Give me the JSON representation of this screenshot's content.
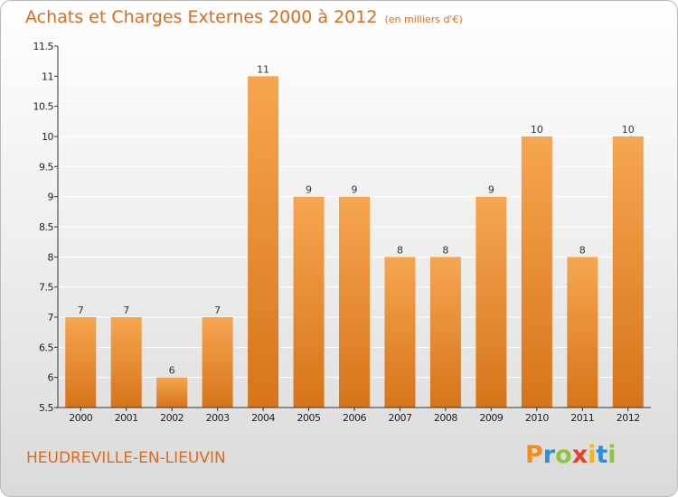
{
  "title": "Achats et Charges Externes 2000 à 2012",
  "unit_note": "(en milliers d'€)",
  "commune": "HEUDREVILLE-EN-LIEUVIN",
  "logo_text": "Proxiti",
  "colors": {
    "title": "#e26a1b",
    "bar_top": "#f6a650",
    "bar_bottom": "#d7741a",
    "axis": "#333333",
    "grid": "#ffffff"
  },
  "chart_data": {
    "type": "bar",
    "categories": [
      "2000",
      "2001",
      "2002",
      "2003",
      "2004",
      "2005",
      "2006",
      "2007",
      "2008",
      "2009",
      "2010",
      "2011",
      "2012"
    ],
    "values": [
      7,
      7,
      6,
      7,
      11,
      9,
      9,
      8,
      8,
      9,
      10,
      8,
      10
    ],
    "data_labels": [
      "7",
      "7",
      "6",
      "7",
      "11",
      "9",
      "9",
      "8",
      "8",
      "9",
      "10",
      "8",
      "10"
    ],
    "title": "Achats et Charges Externes 2000 à 2012",
    "xlabel": "",
    "ylabel": "",
    "ylim": [
      5.5,
      11.5
    ],
    "yticks": [
      5.5,
      6,
      6.5,
      7,
      7.5,
      8,
      8.5,
      9,
      9.5,
      10,
      10.5,
      11,
      11.5
    ],
    "ytick_labels": [
      "5.5",
      "6",
      "6.5",
      "7",
      "7.5",
      "8",
      "8.5",
      "9",
      "9.5",
      "10",
      "10.5",
      "11",
      "11.5"
    ],
    "grid": true,
    "legend": "none"
  }
}
